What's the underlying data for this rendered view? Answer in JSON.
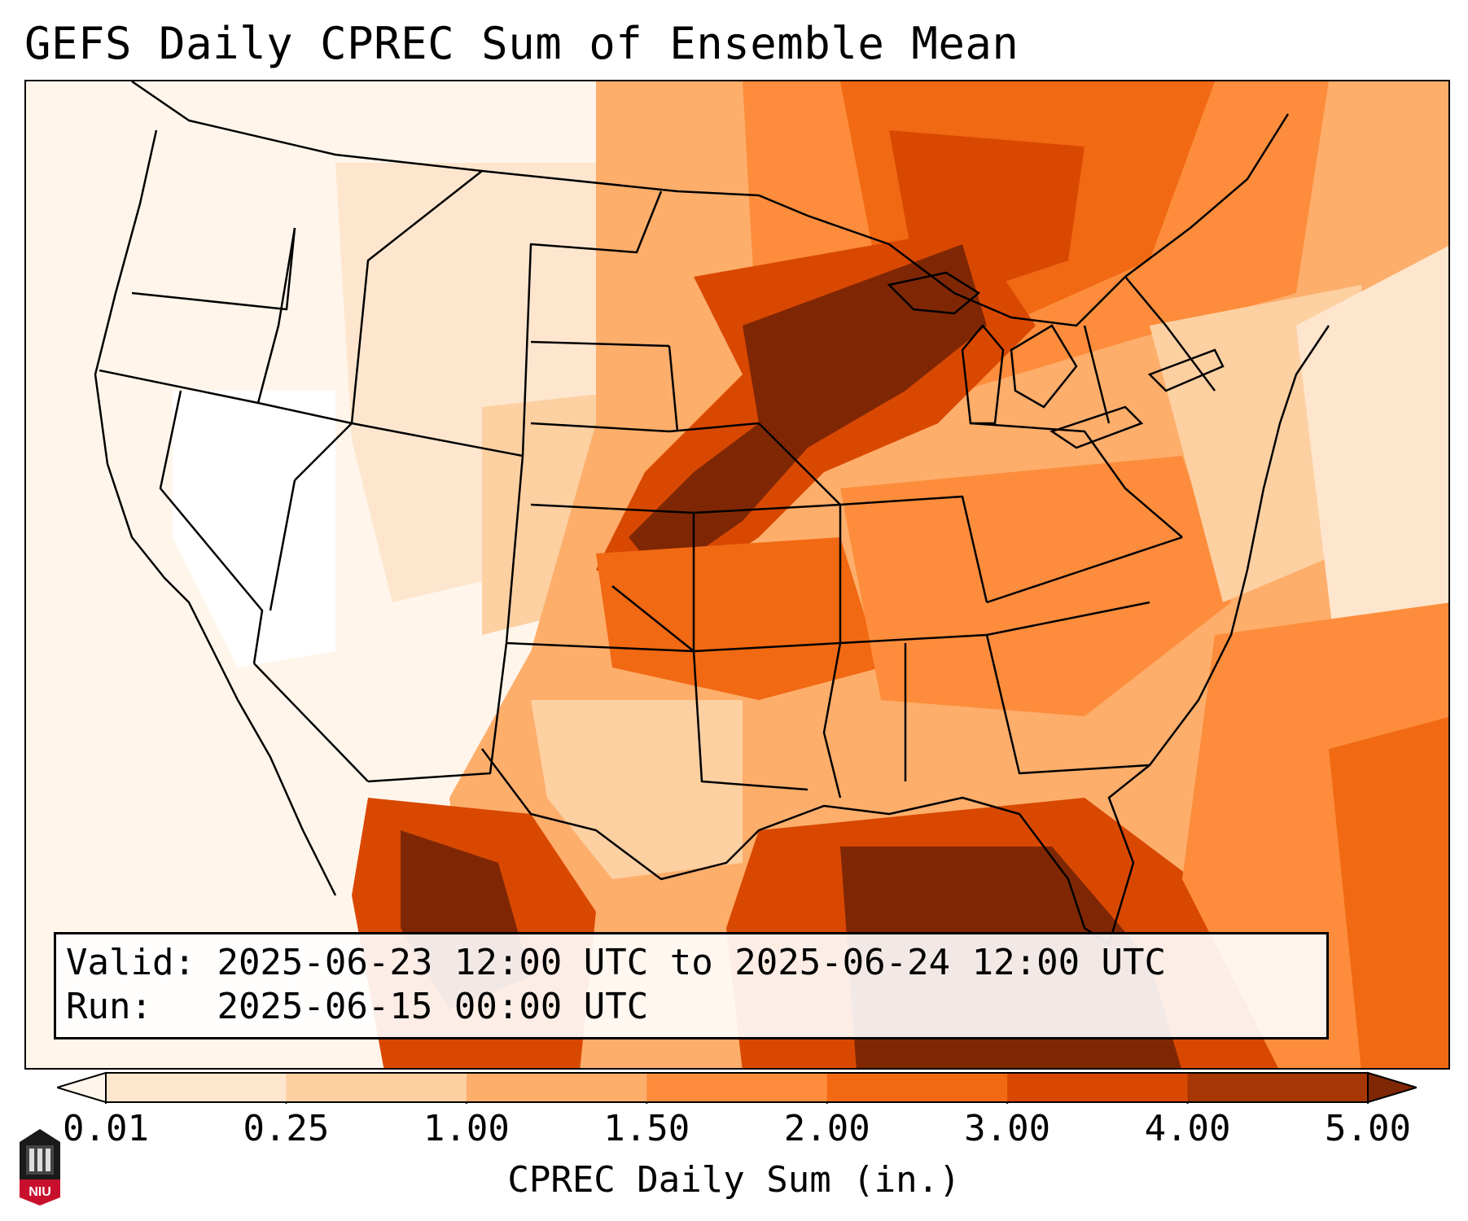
{
  "title": "GEFS Daily CPREC Sum of Ensemble Mean",
  "valid_box": {
    "valid_label": "Valid:",
    "valid_value": "2025-06-23 12:00 UTC to 2025-06-24 12:00 UTC",
    "run_label": "Run:",
    "run_value": "2025-06-15 00:00 UTC"
  },
  "colorbar": {
    "label": "CPREC Daily Sum (in.)",
    "ticks": [
      "0.01",
      "0.25",
      "1.00",
      "1.50",
      "2.00",
      "3.00",
      "4.00",
      "5.00"
    ],
    "colors": [
      "#fee6ce",
      "#fdd0a2",
      "#fdae6b",
      "#fd8d3c",
      "#f16913",
      "#d94801",
      "#a63603"
    ],
    "under_color": "#fff5eb",
    "over_color": "#7f2704",
    "extend": "both"
  },
  "map": {
    "projection": "Lambert conformal, CONUS",
    "features": [
      "state-borders",
      "coastlines",
      "great-lakes"
    ],
    "heaviest_precip_regions": [
      "Upper Midwest",
      "Iowa",
      "Kansas",
      "Gulf of Mexico",
      "northern Mexico"
    ]
  },
  "logo": {
    "text": "NIU"
  }
}
